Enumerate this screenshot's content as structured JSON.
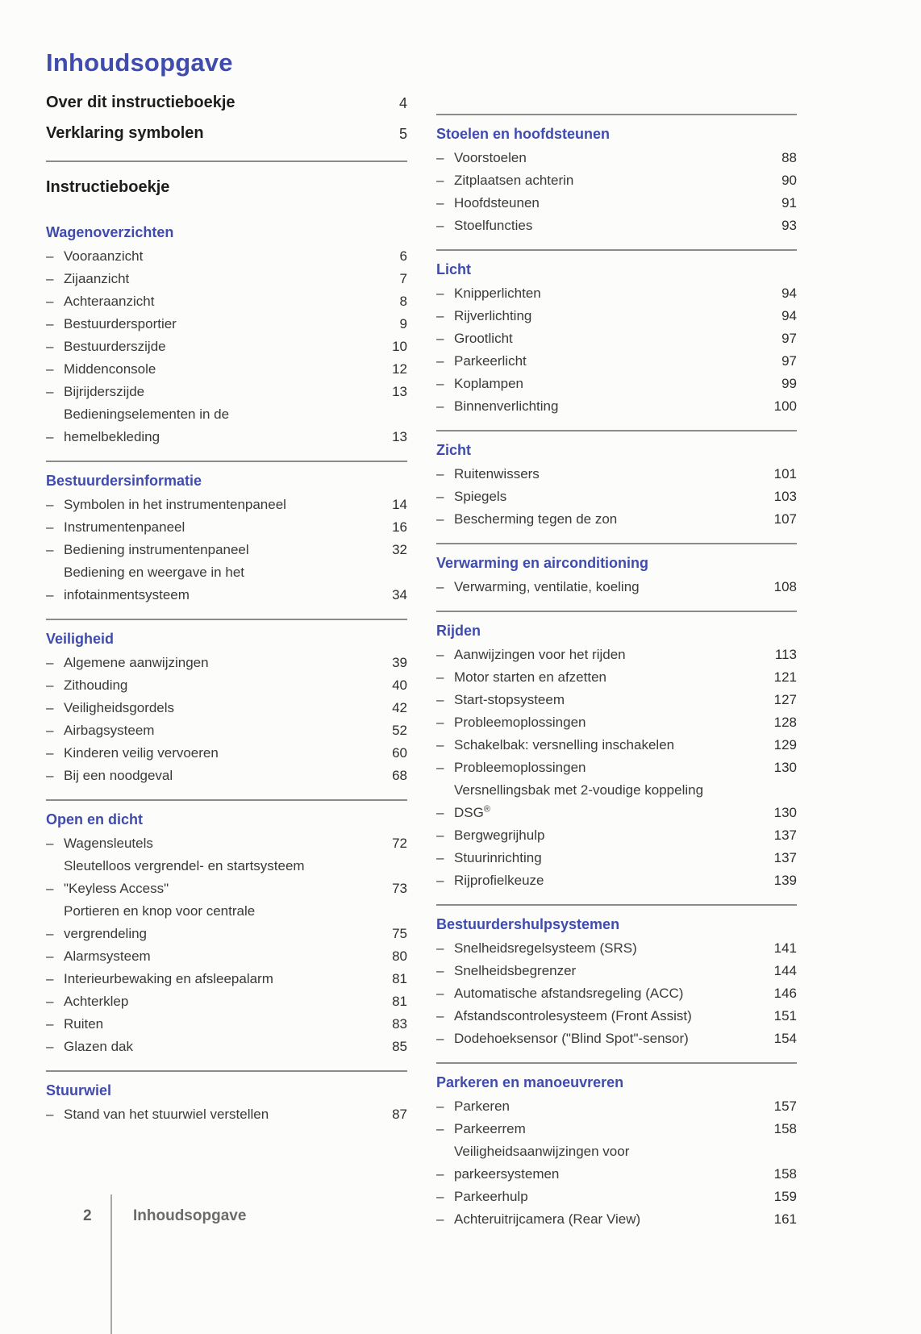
{
  "page": {
    "title": "Inhoudsopgave",
    "footer": {
      "page_number": "2",
      "label": "Inhoudsopgave"
    },
    "colors": {
      "accent_blue": "#3f4cad",
      "body_text": "#3a3a3a",
      "rule_gray": "#8b8b8b",
      "footer_gray": "#6b6b6b",
      "background": "#fcfcfb"
    }
  },
  "top_entries": [
    {
      "label": "Over dit instructieboekje",
      "page": "4"
    },
    {
      "label": "Verklaring symbolen",
      "page": "5"
    }
  ],
  "part_heading": "Instructieboekje",
  "left_sections": [
    {
      "title": "Wagenoverzichten",
      "items": [
        {
          "label": "Vooraanzicht",
          "page": "6"
        },
        {
          "label": "Zijaanzicht",
          "page": "7"
        },
        {
          "label": "Achteraanzicht",
          "page": "8"
        },
        {
          "label": "Bestuurdersportier",
          "page": "9"
        },
        {
          "label": "Bestuurderszijde",
          "page": "10"
        },
        {
          "label": "Middenconsole",
          "page": "12"
        },
        {
          "label": "Bijrijderszijde",
          "page": "13"
        },
        {
          "label": "Bedieningselementen in de\nhemelbekleding",
          "page": "13"
        }
      ]
    },
    {
      "title": "Bestuurdersinformatie",
      "items": [
        {
          "label": "Symbolen in het instrumentenpaneel",
          "page": "14"
        },
        {
          "label": "Instrumentenpaneel",
          "page": "16"
        },
        {
          "label": "Bediening instrumentenpaneel",
          "page": "32"
        },
        {
          "label": "Bediening en weergave in het\ninfotainmentsysteem",
          "page": "34"
        }
      ]
    },
    {
      "title": "Veiligheid",
      "items": [
        {
          "label": "Algemene aanwijzingen",
          "page": "39"
        },
        {
          "label": "Zithouding",
          "page": "40"
        },
        {
          "label": "Veiligheidsgordels",
          "page": "42"
        },
        {
          "label": "Airbagsysteem",
          "page": "52"
        },
        {
          "label": "Kinderen veilig vervoeren",
          "page": "60"
        },
        {
          "label": "Bij een noodgeval",
          "page": "68"
        }
      ]
    },
    {
      "title": "Open en dicht",
      "items": [
        {
          "label": "Wagensleutels",
          "page": "72"
        },
        {
          "label": "Sleutelloos vergrendel- en startsysteem\n\"Keyless Access\"",
          "page": "73"
        },
        {
          "label": "Portieren en knop voor centrale\nvergrendeling",
          "page": "75"
        },
        {
          "label": "Alarmsysteem",
          "page": "80"
        },
        {
          "label": "Interieurbewaking en afsleepalarm",
          "page": "81"
        },
        {
          "label": "Achterklep",
          "page": "81"
        },
        {
          "label": "Ruiten",
          "page": "83"
        },
        {
          "label": "Glazen dak",
          "page": "85"
        }
      ]
    },
    {
      "title": "Stuurwiel",
      "items": [
        {
          "label": "Stand van het stuurwiel verstellen",
          "page": "87"
        }
      ]
    }
  ],
  "right_sections": [
    {
      "title": "Stoelen en hoofdsteunen",
      "items": [
        {
          "label": "Voorstoelen",
          "page": "88"
        },
        {
          "label": "Zitplaatsen achterin",
          "page": "90"
        },
        {
          "label": "Hoofdsteunen",
          "page": "91"
        },
        {
          "label": "Stoelfuncties",
          "page": "93"
        }
      ]
    },
    {
      "title": "Licht",
      "items": [
        {
          "label": "Knipperlichten",
          "page": "94"
        },
        {
          "label": "Rijverlichting",
          "page": "94"
        },
        {
          "label": "Grootlicht",
          "page": "97"
        },
        {
          "label": "Parkeerlicht",
          "page": "97"
        },
        {
          "label": "Koplampen",
          "page": "99"
        },
        {
          "label": "Binnenverlichting",
          "page": "100"
        }
      ]
    },
    {
      "title": "Zicht",
      "items": [
        {
          "label": "Ruitenwissers",
          "page": "101"
        },
        {
          "label": "Spiegels",
          "page": "103"
        },
        {
          "label": "Bescherming tegen de zon",
          "page": "107"
        }
      ]
    },
    {
      "title": "Verwarming en airconditioning",
      "items": [
        {
          "label": "Verwarming, ventilatie, koeling",
          "page": "108"
        }
      ]
    },
    {
      "title": "Rijden",
      "items": [
        {
          "label": "Aanwijzingen voor het rijden",
          "page": "113"
        },
        {
          "label": "Motor starten en afzetten",
          "page": "121"
        },
        {
          "label": "Start-stopsysteem",
          "page": "127"
        },
        {
          "label": "Probleemoplossingen",
          "page": "128"
        },
        {
          "label": "Schakelbak: versnelling inschakelen",
          "page": "129"
        },
        {
          "label": "Probleemoplossingen",
          "page": "130"
        },
        {
          "label": "Versnellingsbak met 2-voudige koppeling\nDSG®",
          "page": "130"
        },
        {
          "label": "Bergwegrijhulp",
          "page": "137"
        },
        {
          "label": "Stuurinrichting",
          "page": "137"
        },
        {
          "label": "Rijprofielkeuze",
          "page": "139"
        }
      ]
    },
    {
      "title": "Bestuurdershulpsystemen",
      "items": [
        {
          "label": "Snelheidsregelsysteem (SRS)",
          "page": "141"
        },
        {
          "label": "Snelheidsbegrenzer",
          "page": "144"
        },
        {
          "label": "Automatische afstandsregeling (ACC)",
          "page": "146"
        },
        {
          "label": "Afstandscontrolesysteem (Front Assist)",
          "page": "151"
        },
        {
          "label": "Dodehoeksensor (\"Blind Spot\"-sensor)",
          "page": "154"
        }
      ]
    },
    {
      "title": "Parkeren en manoeuvreren",
      "items": [
        {
          "label": "Parkeren",
          "page": "157"
        },
        {
          "label": "Parkeerrem",
          "page": "158"
        },
        {
          "label": "Veiligheidsaanwijzingen voor\nparkeersystemen",
          "page": "158"
        },
        {
          "label": "Parkeerhulp",
          "page": "159"
        },
        {
          "label": "Achteruitrijcamera (Rear View)",
          "page": "161"
        }
      ]
    }
  ]
}
